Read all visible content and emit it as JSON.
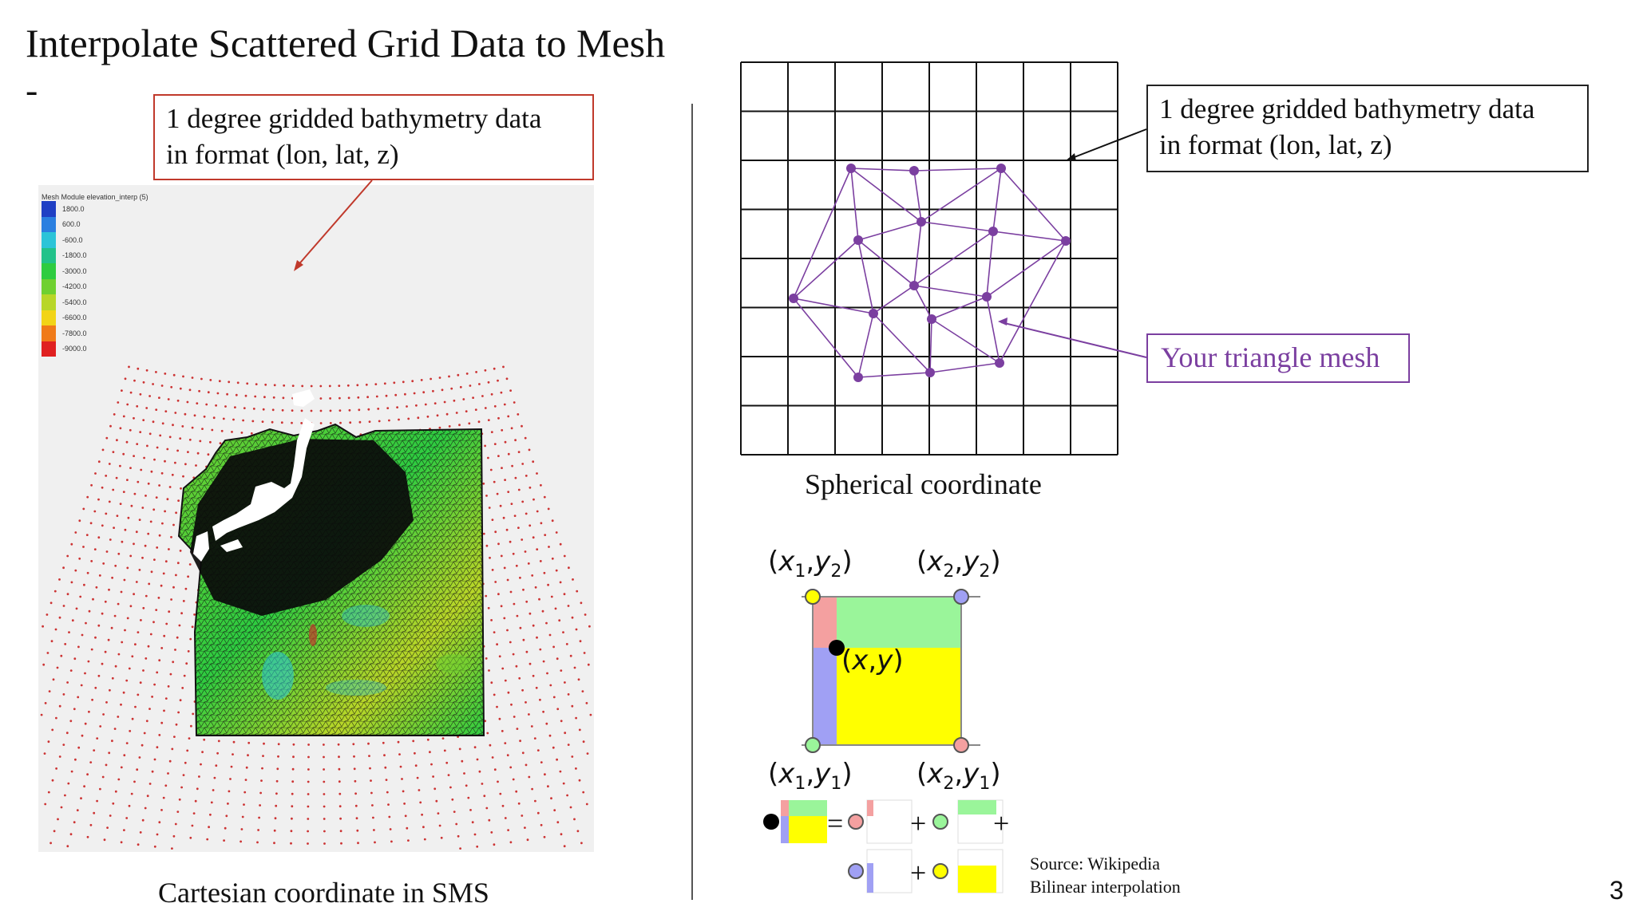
{
  "slide": {
    "title": "Interpolate Scattered Grid Data to Mesh",
    "subtitle_dash": "-",
    "page_number": "3"
  },
  "left_panel": {
    "callout_line1": "1 degree gridded bathymetry data",
    "callout_line2": "in format (lon, lat, z)",
    "caption": "Cartesian coordinate in SMS",
    "legend": {
      "title": "Mesh Module elevation_interp (5)",
      "entries": [
        {
          "label": "1800.0",
          "color": "#1f3fc4"
        },
        {
          "label": "600.0",
          "color": "#2a7fe0"
        },
        {
          "label": "-600.0",
          "color": "#2bc4d8"
        },
        {
          "label": "-1800.0",
          "color": "#22c28a"
        },
        {
          "label": "-3000.0",
          "color": "#2ecc40"
        },
        {
          "label": "-4200.0",
          "color": "#6fd030"
        },
        {
          "label": "-5400.0",
          "color": "#b8d628"
        },
        {
          "label": "-6600.0",
          "color": "#f2d417"
        },
        {
          "label": "-7800.0",
          "color": "#f07a18"
        },
        {
          "label": "-9000.0",
          "color": "#e02020"
        }
      ]
    }
  },
  "right_panel": {
    "callout_line1": "1 degree gridded bathymetry data",
    "callout_line2": "in format (lon, lat, z)",
    "mesh_callout": "Your triangle mesh",
    "grid_caption": "Spherical coordinate",
    "bilinear": {
      "label_tl": "(x1,y2)",
      "label_tr": "(x2,y2)",
      "label_bl": "(x1,y1)",
      "label_br": "(x2,y1)",
      "label_point": "(x,y)",
      "colors": {
        "red": "#f4a0a0",
        "green": "#9af59a",
        "blue": "#a0a0f4",
        "yellow": "#ffff00"
      }
    },
    "source_line1": "Source: Wikipedia",
    "source_line2": "Bilinear interpolation"
  },
  "colors": {
    "callout_red": "#c0392b",
    "mesh_purple": "#7b3fa0",
    "grid_dot": "#cc3333"
  }
}
